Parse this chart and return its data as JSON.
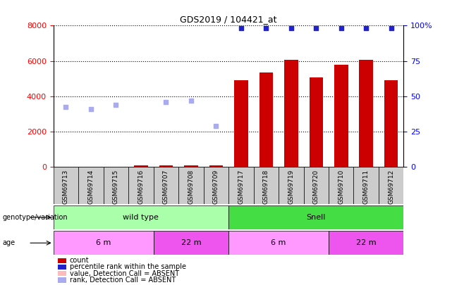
{
  "title": "GDS2019 / 104421_at",
  "samples": [
    "GSM69713",
    "GSM69714",
    "GSM69715",
    "GSM69716",
    "GSM69707",
    "GSM69708",
    "GSM69709",
    "GSM69717",
    "GSM69718",
    "GSM69719",
    "GSM69720",
    "GSM69710",
    "GSM69711",
    "GSM69712"
  ],
  "count_values": [
    null,
    null,
    null,
    80,
    80,
    80,
    80,
    4900,
    5350,
    6050,
    5050,
    5800,
    6050,
    4900
  ],
  "rank_values_right": [
    null,
    null,
    null,
    null,
    null,
    null,
    null,
    98,
    98,
    98,
    98,
    98,
    98,
    98
  ],
  "rank_absent_left": [
    3400,
    3250,
    3500,
    null,
    3650,
    3750,
    2300,
    null,
    null,
    null,
    null,
    null,
    null,
    null
  ],
  "value_absent_left": [
    null,
    null,
    null,
    null,
    null,
    null,
    null,
    null,
    null,
    null,
    null,
    null,
    null,
    null
  ],
  "genotype_groups": [
    {
      "label": "wild type",
      "start": 0,
      "end": 7,
      "color": "#AAFFAA"
    },
    {
      "label": "Snell",
      "start": 7,
      "end": 14,
      "color": "#44DD44"
    }
  ],
  "age_groups": [
    {
      "label": "6 m",
      "start": 0,
      "end": 4,
      "color": "#FF99FF"
    },
    {
      "label": "22 m",
      "start": 4,
      "end": 7,
      "color": "#EE55EE"
    },
    {
      "label": "6 m",
      "start": 7,
      "end": 11,
      "color": "#FF99FF"
    },
    {
      "label": "22 m",
      "start": 11,
      "end": 14,
      "color": "#EE55EE"
    }
  ],
  "ylim_left": [
    0,
    8000
  ],
  "ylim_right": [
    0,
    100
  ],
  "yticks_left": [
    0,
    2000,
    4000,
    6000,
    8000
  ],
  "yticks_right": [
    0,
    25,
    50,
    75,
    100
  ],
  "bar_color": "#CC0000",
  "rank_dot_color": "#2222CC",
  "rank_absent_color": "#AAAAEE",
  "value_absent_color": "#FFBBBB",
  "sample_box_color": "#CCCCCC",
  "plot_bg_color": "#FFFFFF"
}
